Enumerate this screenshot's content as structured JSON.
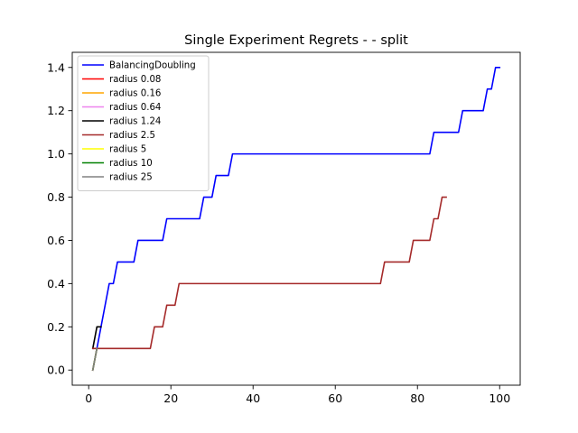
{
  "chart_data": {
    "type": "line",
    "title": "Single Experiment Regrets -  - split",
    "xlabel": "",
    "ylabel": "",
    "xlim": [
      -4,
      105
    ],
    "ylim": [
      -0.07,
      1.47
    ],
    "xticks": [
      0,
      20,
      40,
      60,
      80,
      100
    ],
    "xtick_labels": [
      "0",
      "20",
      "40",
      "60",
      "80",
      "100"
    ],
    "yticks": [
      0.0,
      0.2,
      0.4,
      0.6,
      0.8,
      1.0,
      1.2,
      1.4
    ],
    "ytick_labels": [
      "0.0",
      "0.2",
      "0.4",
      "0.6",
      "0.8",
      "1.0",
      "1.2",
      "1.4"
    ],
    "grid": false,
    "legend_position": "upper-left",
    "series": [
      {
        "name": "BalancingDoubling",
        "color": "#0000ff",
        "x": [
          1,
          2,
          5,
          6,
          7,
          11,
          12,
          18,
          19,
          27,
          28,
          30,
          31,
          34,
          35,
          83,
          84,
          90,
          91,
          96,
          97,
          98,
          99,
          100
        ],
        "y": [
          0.0,
          0.1,
          0.4,
          0.4,
          0.5,
          0.5,
          0.6,
          0.6,
          0.7,
          0.7,
          0.8,
          0.8,
          0.9,
          0.9,
          1.0,
          1.0,
          1.1,
          1.1,
          1.2,
          1.2,
          1.3,
          1.3,
          1.4,
          1.4
        ]
      },
      {
        "name": "radius 0.08",
        "color": "#ff0000",
        "x": [
          1,
          2
        ],
        "y": [
          0.0,
          0.1
        ]
      },
      {
        "name": "radius 0.16",
        "color": "#ffa500",
        "x": [
          1,
          2
        ],
        "y": [
          0.0,
          0.1
        ]
      },
      {
        "name": "radius 0.64",
        "color": "#ee82ee",
        "x": [
          1,
          2
        ],
        "y": [
          0.0,
          0.1
        ]
      },
      {
        "name": "radius 1.24",
        "color": "#000000",
        "x": [
          1,
          2,
          3
        ],
        "y": [
          0.1,
          0.2,
          0.2
        ]
      },
      {
        "name": "radius 2.5",
        "color": "#a52a2a",
        "x": [
          1,
          2,
          15,
          16,
          17,
          18,
          19,
          21,
          22,
          23,
          71,
          72,
          78,
          79,
          83,
          84,
          85,
          86,
          87
        ],
        "y": [
          0.1,
          0.1,
          0.1,
          0.2,
          0.2,
          0.2,
          0.3,
          0.3,
          0.4,
          0.4,
          0.4,
          0.5,
          0.5,
          0.6,
          0.6,
          0.7,
          0.7,
          0.8,
          0.8
        ]
      },
      {
        "name": "radius 5",
        "color": "#ffff00",
        "x": [
          1,
          2
        ],
        "y": [
          0.0,
          0.1
        ]
      },
      {
        "name": "radius 10",
        "color": "#008000",
        "x": [
          1,
          2
        ],
        "y": [
          0.0,
          0.1
        ]
      },
      {
        "name": "radius 25",
        "color": "#808080",
        "x": [
          1,
          2
        ],
        "y": [
          0.0,
          0.1
        ]
      }
    ]
  }
}
